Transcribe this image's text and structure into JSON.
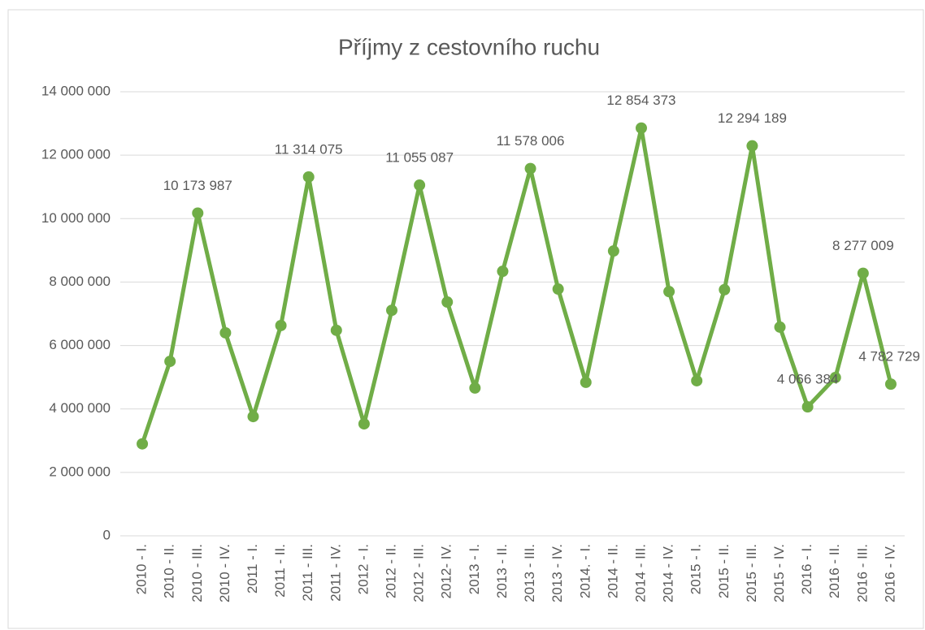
{
  "chart_data": {
    "type": "line",
    "title": "Příjmy z cestovního ruchu",
    "categories": [
      "2010 - I.",
      "2010 - II.",
      "2010 - III.",
      "2010 - IV.",
      "2011 - I.",
      "2011 - II.",
      "2011 - III.",
      "2011 - IV.",
      "2012 - I.",
      "2012 - II.",
      "2012 - III.",
      "2012- IV.",
      "2013 - I.",
      "2013 - II.",
      "2013 - III.",
      "2013 - IV.",
      "2014. - I.",
      "2014 - II.",
      "2014 - III.",
      "2014 - IV.",
      "2015 - I.",
      "2015 - II.",
      "2015 - III.",
      "2015 - IV.",
      "2016 - I.",
      "2016 - II.",
      "2016 - III.",
      "2016 - IV."
    ],
    "series": [
      {
        "name": "Příjmy z cestovního ruchu",
        "color": "#70ad47",
        "values": [
          2900000,
          5500000,
          10173987,
          6400000,
          3760000,
          6630000,
          11314075,
          6480000,
          3530000,
          7110000,
          11055087,
          7370000,
          4660000,
          8340000,
          11578006,
          7780000,
          4840000,
          8980000,
          12854373,
          7700000,
          4890000,
          7760000,
          12294189,
          6580000,
          4066384,
          4990000,
          8277009,
          4782729
        ],
        "value_labels": [
          null,
          null,
          "10 173 987",
          null,
          null,
          null,
          "11 314 075",
          null,
          null,
          null,
          "11 055 087",
          null,
          null,
          null,
          "11 578 006",
          null,
          null,
          null,
          "12 854 373",
          null,
          null,
          null,
          "12 294 189",
          null,
          "4 066 384",
          null,
          "8 277 009",
          "4 782 729"
        ]
      }
    ],
    "ylim": [
      0,
      14000000
    ],
    "yticks": [
      0,
      {
        "value": 2000000,
        "label": "2 000 000"
      },
      {
        "value": 4000000,
        "label": "4 000 000"
      },
      {
        "value": 6000000,
        "label": "6 000 000"
      },
      {
        "value": 8000000,
        "label": "8 000 000"
      },
      {
        "value": 10000000,
        "label": "10 000 000"
      },
      {
        "value": 12000000,
        "label": "12 000 000"
      },
      {
        "value": 14000000,
        "label": "14 000 000"
      }
    ],
    "grid": true
  }
}
